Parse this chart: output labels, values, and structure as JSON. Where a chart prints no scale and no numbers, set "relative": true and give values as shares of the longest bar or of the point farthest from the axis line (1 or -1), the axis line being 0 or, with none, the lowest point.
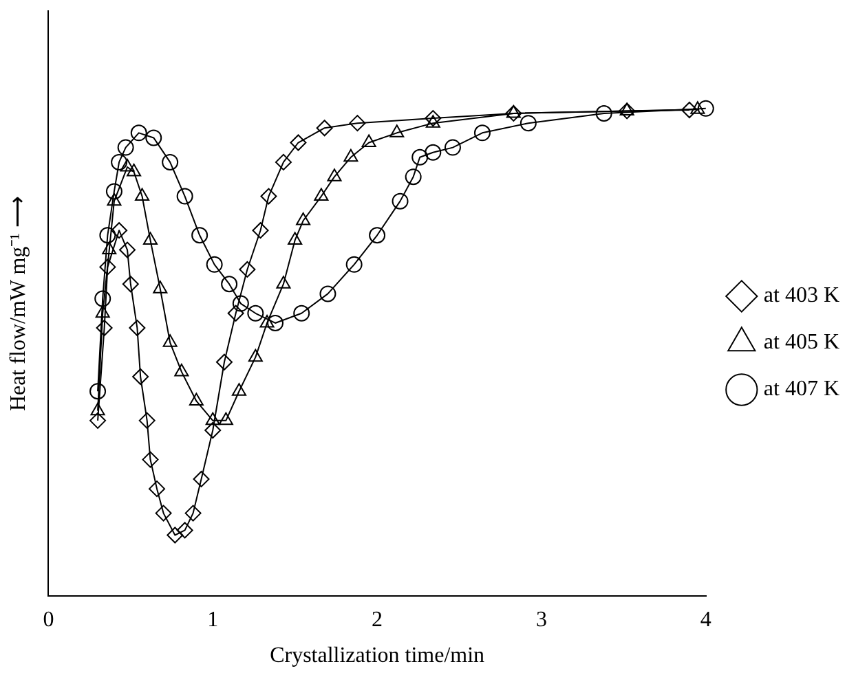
{
  "chart_data": {
    "type": "line",
    "xlabel": "Crystallization time/min",
    "ylabel": "Heat flow/mW mg⁻¹ ⟶",
    "relative": true,
    "xlim": [
      0,
      4
    ],
    "xticks": [
      0,
      1,
      2,
      3,
      4
    ],
    "grid": false,
    "legend": "right",
    "line_style": "solid",
    "series": [
      {
        "name": "at 403 K",
        "color": "#000000",
        "marker": "diamond",
        "x": [
          0.3,
          0.34,
          0.36,
          0.43,
          0.48,
          0.5,
          0.54,
          0.56,
          0.6,
          0.62,
          0.66,
          0.7,
          0.77,
          0.83,
          0.88,
          0.93,
          1.0,
          1.07,
          1.14,
          1.21,
          1.29,
          1.34,
          1.43,
          1.52,
          1.68,
          1.88,
          2.34,
          2.83,
          3.52,
          3.9
        ],
        "values": [
          0.36,
          0.55,
          0.675,
          0.75,
          0.71,
          0.64,
          0.55,
          0.45,
          0.36,
          0.28,
          0.22,
          0.17,
          0.125,
          0.135,
          0.17,
          0.24,
          0.34,
          0.48,
          0.58,
          0.67,
          0.75,
          0.82,
          0.89,
          0.93,
          0.96,
          0.97,
          0.98,
          0.99,
          0.995,
          0.997
        ]
      },
      {
        "name": "at 405 K",
        "color": "#000000",
        "marker": "triangle",
        "x": [
          0.3,
          0.33,
          0.37,
          0.4,
          0.48,
          0.52,
          0.57,
          0.62,
          0.68,
          0.74,
          0.81,
          0.9,
          1.0,
          1.08,
          1.16,
          1.26,
          1.33,
          1.43,
          1.5,
          1.55,
          1.66,
          1.74,
          1.84,
          1.95,
          2.12,
          2.34,
          2.83,
          3.52,
          3.95
        ],
        "values": [
          0.38,
          0.58,
          0.71,
          0.81,
          0.88,
          0.87,
          0.82,
          0.73,
          0.63,
          0.52,
          0.46,
          0.4,
          0.36,
          0.36,
          0.42,
          0.49,
          0.56,
          0.64,
          0.73,
          0.77,
          0.82,
          0.86,
          0.9,
          0.93,
          0.95,
          0.97,
          0.99,
          0.995,
          0.998
        ]
      },
      {
        "name": "at 407 K",
        "color": "#000000",
        "marker": "circle",
        "x": [
          0.3,
          0.33,
          0.36,
          0.4,
          0.43,
          0.47,
          0.55,
          0.64,
          0.74,
          0.83,
          0.92,
          1.01,
          1.1,
          1.17,
          1.26,
          1.38,
          1.54,
          1.7,
          1.86,
          2.0,
          2.14,
          2.22,
          2.26,
          2.34,
          2.46,
          2.64,
          2.92,
          3.38,
          4.0
        ],
        "values": [
          0.42,
          0.61,
          0.74,
          0.83,
          0.89,
          0.92,
          0.95,
          0.94,
          0.89,
          0.82,
          0.74,
          0.68,
          0.64,
          0.6,
          0.58,
          0.56,
          0.58,
          0.62,
          0.68,
          0.74,
          0.81,
          0.86,
          0.9,
          0.91,
          0.92,
          0.95,
          0.97,
          0.99,
          1.0
        ]
      }
    ]
  }
}
